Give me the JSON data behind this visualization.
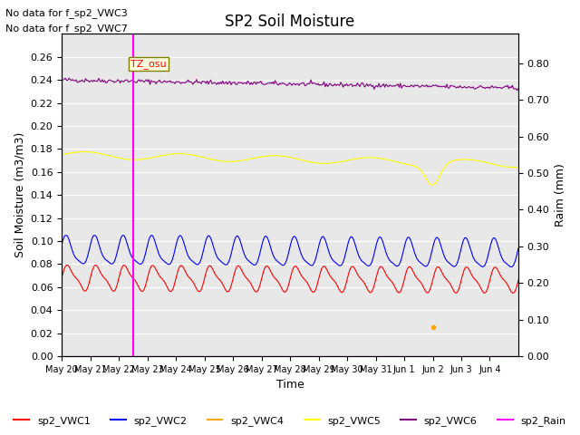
{
  "title": "SP2 Soil Moisture",
  "ylabel_left": "Soil Moisture (m3/m3)",
  "ylabel_right": "Raim (mm)",
  "xlabel": "Time",
  "no_data_text": [
    "No data for f_sp2_VWC3",
    "No data for f_sp2_VWC7"
  ],
  "tz_label": "TZ_osu",
  "ylim_left": [
    0.0,
    0.28
  ],
  "ylim_right": [
    0.0,
    0.88
  ],
  "yticks_left": [
    0.0,
    0.02,
    0.04,
    0.06,
    0.08,
    0.1,
    0.12,
    0.14,
    0.16,
    0.18,
    0.2,
    0.22,
    0.24,
    0.26
  ],
  "yticks_right": [
    0.0,
    0.1,
    0.2,
    0.3,
    0.4,
    0.5,
    0.6,
    0.7,
    0.8
  ],
  "vline_x": 2.5,
  "vline_color": "#FF00FF",
  "x_tick_positions": [
    0,
    1,
    2,
    3,
    4,
    5,
    6,
    7,
    8,
    9,
    10,
    11,
    12,
    13,
    14,
    15
  ],
  "x_tick_labels": [
    "May 20",
    "May 21",
    "May 22",
    "May 23",
    "May 24",
    "May 25",
    "May 26",
    "May 27",
    "May 28",
    "May 29",
    "May 30",
    "May 31",
    "Jun 1",
    "Jun 2",
    "Jun 3",
    "Jun 4"
  ],
  "xlim": [
    0,
    16
  ],
  "colors": {
    "VWC1": "#FF0000",
    "VWC2": "#0000FF",
    "VWC4": "#FFA500",
    "VWC5": "#FFFF00",
    "VWC6": "#800080",
    "Rain": "#FF00FF"
  },
  "background_color": "#E8E8E8",
  "grid_color": "#FFFFFF"
}
